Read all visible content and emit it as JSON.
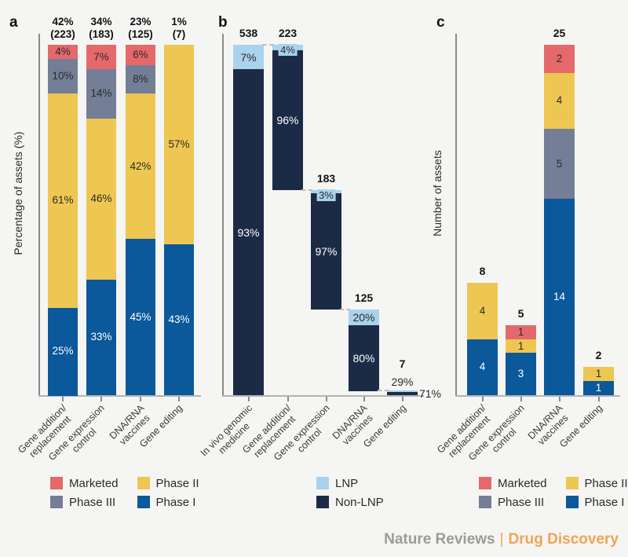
{
  "colors": {
    "background": "#F5F5F3",
    "marketed": "#E5696B",
    "phase3": "#747E97",
    "phase2": "#EDC751",
    "phase1": "#0B589B",
    "lnp": "#A9D2EC",
    "nonlnp": "#1C2B45",
    "axis": "#8A8A88",
    "baseline": "#B3B3B1",
    "text_dark": "#2B2B2B",
    "text_light": "#FFFFFF",
    "footer_gray": "#9B9B99",
    "footer_orange": "#F0A455"
  },
  "footer": {
    "brand": "Nature Reviews",
    "separator": "|",
    "journal": "Drug Discovery"
  },
  "legends": {
    "a": {
      "items": [
        {
          "label": "Marketed",
          "color": "marketed"
        },
        {
          "label": "Phase III",
          "color": "phase3"
        },
        {
          "label": "Phase II",
          "color": "phase2"
        },
        {
          "label": "Phase I",
          "color": "phase1"
        }
      ]
    },
    "b": {
      "items": [
        {
          "label": "LNP",
          "color": "lnp"
        },
        {
          "label": "Non-LNP",
          "color": "nonlnp"
        }
      ]
    },
    "c": {
      "items": [
        {
          "label": "Marketed",
          "color": "marketed"
        },
        {
          "label": "Phase III",
          "color": "phase3"
        },
        {
          "label": "Phase II",
          "color": "phase2"
        },
        {
          "label": "Phase I",
          "color": "phase1"
        }
      ]
    }
  },
  "chart_data": [
    {
      "panel": "a",
      "type": "bar",
      "subtype": "stacked-percent",
      "ylabel": "Percentage of assets (%)",
      "ylim": [
        0,
        100
      ],
      "grid": false,
      "categories": [
        [
          "Gene addition/",
          "replacement"
        ],
        [
          "Gene expression",
          "control"
        ],
        [
          "DNA/RNA",
          "vaccines"
        ],
        [
          "Gene editing"
        ]
      ],
      "bars": [
        {
          "header": [
            "42%",
            "(223)"
          ],
          "segments": [
            {
              "key": "marketed",
              "value": 4,
              "label": "4%"
            },
            {
              "key": "phase3",
              "value": 10,
              "label": "10%"
            },
            {
              "key": "phase2",
              "value": 61,
              "label": "61%"
            },
            {
              "key": "phase1",
              "value": 25,
              "label": "25%"
            }
          ]
        },
        {
          "header": [
            "34%",
            "(183)"
          ],
          "segments": [
            {
              "key": "marketed",
              "value": 7,
              "label": "7%"
            },
            {
              "key": "phase3",
              "value": 14,
              "label": "14%"
            },
            {
              "key": "phase2",
              "value": 46,
              "label": "46%"
            },
            {
              "key": "phase1",
              "value": 33,
              "label": "33%"
            }
          ]
        },
        {
          "header": [
            "23%",
            "(125)"
          ],
          "segments": [
            {
              "key": "marketed",
              "value": 6,
              "label": "6%"
            },
            {
              "key": "phase3",
              "value": 8,
              "label": "8%"
            },
            {
              "key": "phase2",
              "value": 42,
              "label": "42%"
            },
            {
              "key": "phase1",
              "value": 45,
              "label": "45%"
            }
          ]
        },
        {
          "header": [
            "1%",
            "(7)"
          ],
          "segments": [
            {
              "key": "phase2",
              "value": 57,
              "label": "57%"
            },
            {
              "key": "phase1",
              "value": 43,
              "label": "43%"
            }
          ]
        }
      ]
    },
    {
      "panel": "b",
      "type": "bar",
      "subtype": "waterfall-stacked",
      "total_reference": 538,
      "categories": [
        [
          "In vivo genomic",
          "medicine"
        ],
        [
          "Gene addition/",
          "replacement"
        ],
        [
          "Gene expression",
          "control"
        ],
        [
          "DNA/RNA",
          "vaccines"
        ],
        [
          "Gene editing"
        ]
      ],
      "bars": [
        {
          "header": "538",
          "total": 538,
          "lnp_pct": 7,
          "nonlnp_pct": 93,
          "lnp_label": "7%",
          "nonlnp_label": "93%",
          "lnp_label_style": "inside",
          "nonlnp_label_style": "inside"
        },
        {
          "header": "223",
          "total": 223,
          "lnp_pct": 4,
          "nonlnp_pct": 96,
          "lnp_label": "4%",
          "nonlnp_label": "96%",
          "lnp_label_style": "pill",
          "nonlnp_label_style": "inside"
        },
        {
          "header": "183",
          "total": 183,
          "lnp_pct": 3,
          "nonlnp_pct": 97,
          "lnp_label": "3%",
          "nonlnp_label": "97%",
          "lnp_label_style": "pill",
          "nonlnp_label_style": "inside"
        },
        {
          "header": "125",
          "total": 125,
          "lnp_pct": 20,
          "nonlnp_pct": 80,
          "lnp_label": "20%",
          "nonlnp_label": "80%",
          "lnp_label_style": "inside",
          "nonlnp_label_style": "inside"
        },
        {
          "header": "7",
          "total": 7,
          "lnp_pct": 29,
          "nonlnp_pct": 71,
          "lnp_label": "29%",
          "nonlnp_label": "71%",
          "lnp_label_style": "above",
          "nonlnp_label_style": "right"
        }
      ]
    },
    {
      "panel": "c",
      "type": "bar",
      "subtype": "stacked-count",
      "ylabel": "Number of assets",
      "ylim": [
        0,
        25
      ],
      "grid": false,
      "categories": [
        [
          "Gene addition/",
          "replacement"
        ],
        [
          "Gene expression",
          "control"
        ],
        [
          "DNA/RNA",
          "vaccines"
        ],
        [
          "Gene editing"
        ]
      ],
      "bars": [
        {
          "header": "8",
          "segments": [
            {
              "key": "phase2",
              "value": 4,
              "label": "4"
            },
            {
              "key": "phase1",
              "value": 4,
              "label": "4"
            }
          ]
        },
        {
          "header": "5",
          "segments": [
            {
              "key": "marketed",
              "value": 1,
              "label": "1"
            },
            {
              "key": "phase2",
              "value": 1,
              "label": "1"
            },
            {
              "key": "phase1",
              "value": 3,
              "label": "3"
            }
          ]
        },
        {
          "header": "25",
          "segments": [
            {
              "key": "marketed",
              "value": 2,
              "label": "2"
            },
            {
              "key": "phase2",
              "value": 4,
              "label": "4"
            },
            {
              "key": "phase3",
              "value": 5,
              "label": "5"
            },
            {
              "key": "phase1",
              "value": 14,
              "label": "14"
            }
          ]
        },
        {
          "header": "2",
          "segments": [
            {
              "key": "phase2",
              "value": 1,
              "label": "1"
            },
            {
              "key": "phase1",
              "value": 1,
              "label": "1"
            }
          ]
        }
      ]
    }
  ]
}
